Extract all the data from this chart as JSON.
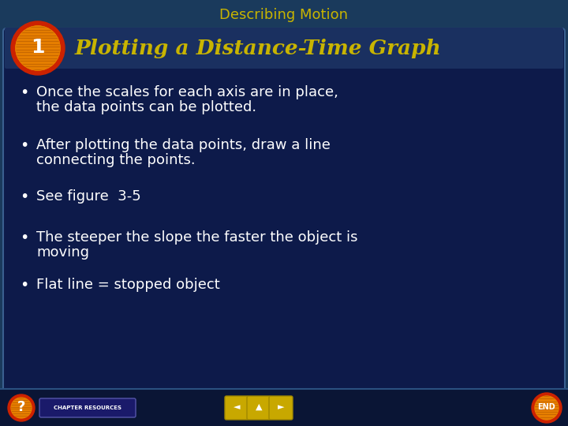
{
  "title": "Describing Motion",
  "title_color": "#C8B400",
  "heading": "Plotting a Distance-Time Graph",
  "heading_color": "#C8B400",
  "number": "1",
  "bullet_points": [
    "Once the scales for each axis are in place,\nthe data points can be plotted.",
    "After plotting the data points, draw a line\nconnecting the points.",
    "See figure  3-5",
    "The steeper the slope the faster the object is\nmoving",
    "Flat line = stopped object"
  ],
  "bullet_color": "#FFFFFF",
  "bg_color_outer": "#1A3A5C",
  "bg_color_inner": "#0D1A4A",
  "card_bg": "#0D1A4A",
  "footer_bg": "#0A1535",
  "circle_outer_color": "#CC2200",
  "circle_inner_color": "#E88000",
  "number_color": "#FFFFFF",
  "title_fontsize": 13,
  "heading_fontsize": 19,
  "bullet_fontsize": 13,
  "number_fontsize": 18
}
